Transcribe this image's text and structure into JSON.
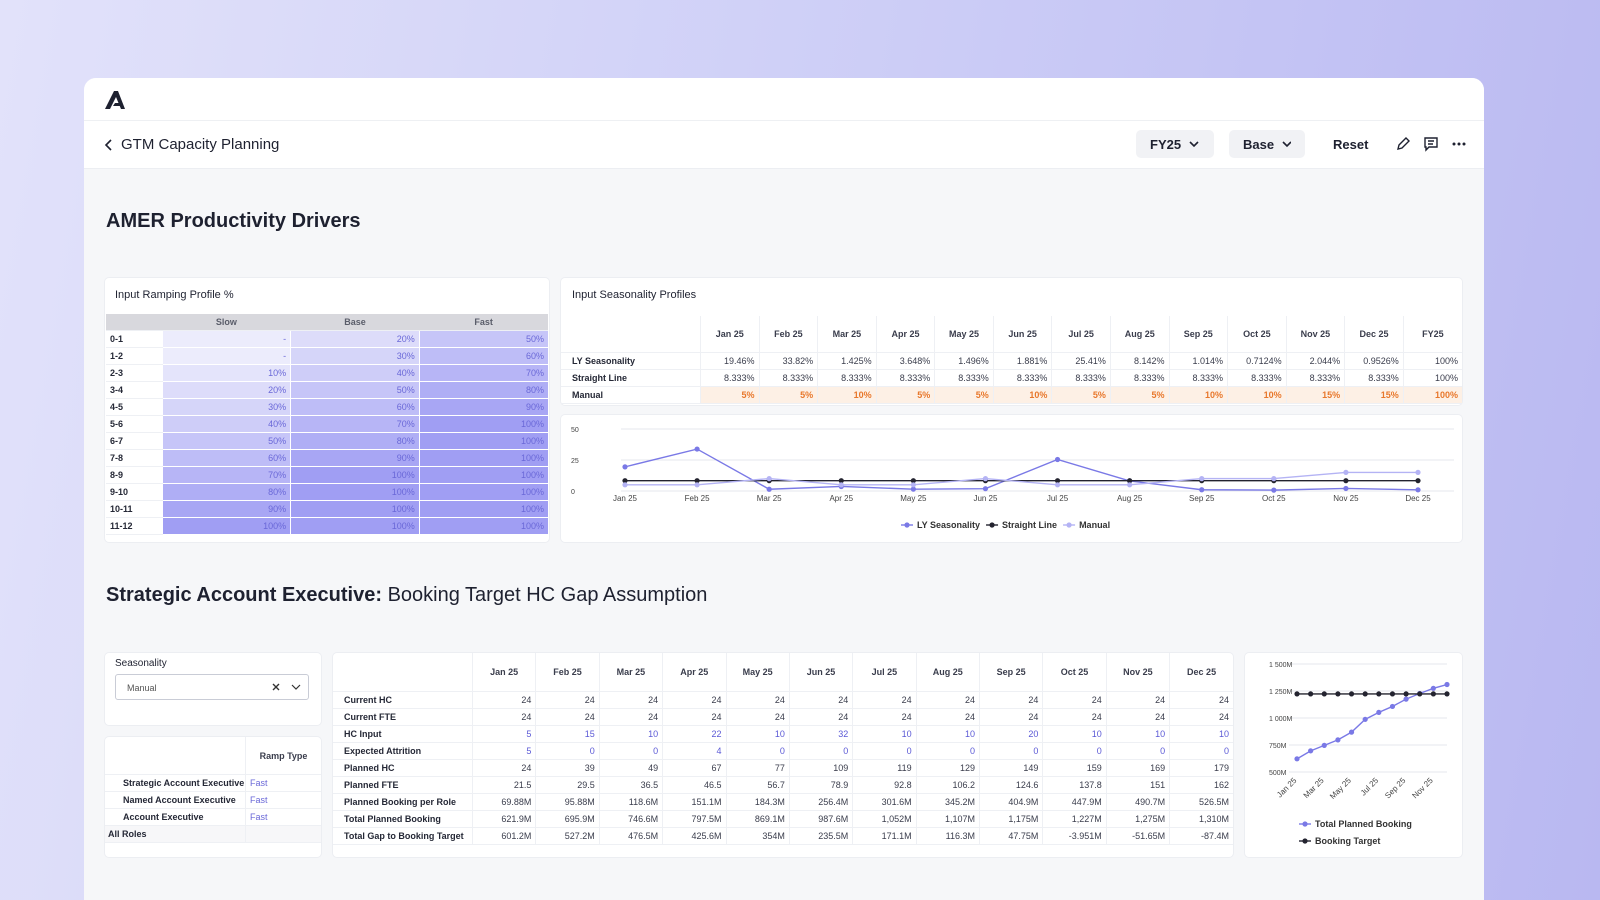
{
  "header": {
    "title": "GTM Capacity Planning",
    "year": "FY25",
    "scenario": "Base",
    "reset": "Reset"
  },
  "section1": {
    "title": "AMER Productivity Drivers"
  },
  "ramping_table": {
    "title": "Input Ramping Profile %",
    "columns": [
      "Slow",
      "Base",
      "Fast"
    ],
    "rows": [
      {
        "label": "0-1",
        "values": [
          "-",
          "20%",
          "50%"
        ]
      },
      {
        "label": "1-2",
        "values": [
          "-",
          "30%",
          "60%"
        ]
      },
      {
        "label": "2-3",
        "values": [
          "10%",
          "40%",
          "70%"
        ]
      },
      {
        "label": "3-4",
        "values": [
          "20%",
          "50%",
          "80%"
        ]
      },
      {
        "label": "4-5",
        "values": [
          "30%",
          "60%",
          "90%"
        ]
      },
      {
        "label": "5-6",
        "values": [
          "40%",
          "70%",
          "100%"
        ]
      },
      {
        "label": "6-7",
        "values": [
          "50%",
          "80%",
          "100%"
        ]
      },
      {
        "label": "7-8",
        "values": [
          "60%",
          "90%",
          "100%"
        ]
      },
      {
        "label": "8-9",
        "values": [
          "70%",
          "100%",
          "100%"
        ]
      },
      {
        "label": "9-10",
        "values": [
          "80%",
          "100%",
          "100%"
        ]
      },
      {
        "label": "10-11",
        "values": [
          "90%",
          "100%",
          "100%"
        ]
      },
      {
        "label": "11-12",
        "values": [
          "100%",
          "100%",
          "100%"
        ]
      }
    ]
  },
  "seasonality_table": {
    "title": "Input Seasonality Profiles",
    "columns": [
      "Jan 25",
      "Feb 25",
      "Mar 25",
      "Apr 25",
      "May 25",
      "Jun 25",
      "Jul 25",
      "Aug 25",
      "Sep 25",
      "Oct 25",
      "Nov 25",
      "Dec 25",
      "FY25"
    ],
    "rows": [
      {
        "label": "LY Seasonality",
        "values": [
          "19.46%",
          "33.82%",
          "1.425%",
          "3.648%",
          "1.496%",
          "1.881%",
          "25.41%",
          "8.142%",
          "1.014%",
          "0.7124%",
          "2.044%",
          "0.9526%",
          "100%"
        ]
      },
      {
        "label": "Straight Line",
        "values": [
          "8.333%",
          "8.333%",
          "8.333%",
          "8.333%",
          "8.333%",
          "8.333%",
          "8.333%",
          "8.333%",
          "8.333%",
          "8.333%",
          "8.333%",
          "8.333%",
          "100%"
        ]
      },
      {
        "label": "Manual",
        "values": [
          "5%",
          "5%",
          "10%",
          "5%",
          "5%",
          "10%",
          "5%",
          "5%",
          "10%",
          "10%",
          "15%",
          "15%",
          "100%"
        ]
      }
    ]
  },
  "chart_data": [
    {
      "type": "line",
      "categories": [
        "Jan 25",
        "Feb 25",
        "Mar 25",
        "Apr 25",
        "May 25",
        "Jun 25",
        "Jul 25",
        "Aug 25",
        "Sep 25",
        "Oct 25",
        "Nov 25",
        "Dec 25"
      ],
      "series": [
        {
          "name": "LY Seasonality",
          "color": "#7a79e6",
          "values": [
            19.46,
            33.82,
            1.425,
            3.648,
            1.496,
            1.881,
            25.41,
            8.142,
            1.014,
            0.7124,
            2.044,
            0.9526
          ]
        },
        {
          "name": "Straight Line",
          "color": "#23232f",
          "values": [
            8.333,
            8.333,
            8.333,
            8.333,
            8.333,
            8.333,
            8.333,
            8.333,
            8.333,
            8.333,
            8.333,
            8.333
          ]
        },
        {
          "name": "Manual",
          "color": "#b4b3f4",
          "values": [
            5,
            5,
            10,
            5,
            5,
            10,
            5,
            5,
            10,
            10,
            15,
            15
          ]
        }
      ],
      "ylim": [
        0,
        50
      ],
      "yticks": [
        0,
        25,
        50
      ],
      "grid": true,
      "legend": "bottom",
      "rotate_labels": false
    },
    {
      "type": "line",
      "categories": [
        "Jan 25",
        null,
        "Mar 25",
        null,
        "May 25",
        null,
        "Jul 25",
        null,
        "Sep 25",
        null,
        "Nov 25",
        null
      ],
      "series": [
        {
          "name": "Total Planned Booking",
          "color": "#7a79e6",
          "values": [
            621.9,
            695.9,
            746.6,
            797.5,
            869.1,
            987.6,
            1052,
            1107,
            1175,
            1227,
            1275,
            1310
          ]
        },
        {
          "name": "Booking Target",
          "color": "#23232f",
          "values": [
            1223.1,
            1223.1,
            1223.1,
            1223.1,
            1223.1,
            1223.1,
            1223.1,
            1223.1,
            1223.1,
            1223.1,
            1223.1,
            1223.1
          ]
        }
      ],
      "ylim": [
        500,
        1500
      ],
      "yticks": [
        {
          "value": 500,
          "label": "500M"
        },
        {
          "value": 750,
          "label": "750M"
        },
        {
          "value": 1000,
          "label": "1 000M"
        },
        {
          "value": 1250,
          "label": "1 250M"
        },
        {
          "value": 1500,
          "label": "1 500M"
        }
      ],
      "grid": true,
      "legend": "bottom-left",
      "rotate_labels": true
    }
  ],
  "section2": {
    "title_strong": "Strategic Account Executive:",
    "title_rest": "Booking Target HC Gap Assumption"
  },
  "filter": {
    "label": "Seasonality",
    "value": "Manual"
  },
  "role_table": {
    "column": "Ramp Type",
    "rows": [
      {
        "label": "Strategic Account Executive",
        "value": "Fast"
      },
      {
        "label": "Named Account Executive",
        "value": "Fast"
      },
      {
        "label": "Account Executive",
        "value": "Fast"
      }
    ],
    "total": "All Roles"
  },
  "hc_table": {
    "columns": [
      "Jan 25",
      "Feb 25",
      "Mar 25",
      "Apr 25",
      "May 25",
      "Jun 25",
      "Jul 25",
      "Aug 25",
      "Sep 25",
      "Oct 25",
      "Nov 25",
      "Dec 25"
    ],
    "rows": [
      {
        "label": "Current HC",
        "values": [
          "24",
          "24",
          "24",
          "24",
          "24",
          "24",
          "24",
          "24",
          "24",
          "24",
          "24",
          "24"
        ]
      },
      {
        "label": "Current FTE",
        "values": [
          "24",
          "24",
          "24",
          "24",
          "24",
          "24",
          "24",
          "24",
          "24",
          "24",
          "24",
          "24"
        ]
      },
      {
        "label": "HC Input",
        "values": [
          "5",
          "15",
          "10",
          "22",
          "10",
          "32",
          "10",
          "10",
          "20",
          "10",
          "10",
          "10"
        ]
      },
      {
        "label": "Expected Attrition",
        "values": [
          "5",
          "0",
          "0",
          "4",
          "0",
          "0",
          "0",
          "0",
          "0",
          "0",
          "0",
          "0"
        ]
      },
      {
        "label": "Planned HC",
        "values": [
          "24",
          "39",
          "49",
          "67",
          "77",
          "109",
          "119",
          "129",
          "149",
          "159",
          "169",
          "179"
        ]
      },
      {
        "label": "Planned FTE",
        "values": [
          "21.5",
          "29.5",
          "36.5",
          "46.5",
          "56.7",
          "78.9",
          "92.8",
          "106.2",
          "124.6",
          "137.8",
          "151",
          "162"
        ]
      },
      {
        "label": "Planned Booking per Role",
        "values": [
          "69.88M",
          "95.88M",
          "118.6M",
          "151.1M",
          "184.3M",
          "256.4M",
          "301.6M",
          "345.2M",
          "404.9M",
          "447.9M",
          "490.7M",
          "526.5M"
        ]
      },
      {
        "label": "Total Planned Booking",
        "values": [
          "621.9M",
          "695.9M",
          "746.6M",
          "797.5M",
          "869.1M",
          "987.6M",
          "1,052M",
          "1,107M",
          "1,175M",
          "1,227M",
          "1,275M",
          "1,310M"
        ]
      },
      {
        "label": "Total Gap to Booking Target",
        "values": [
          "601.2M",
          "527.2M",
          "476.5M",
          "425.6M",
          "354M",
          "235.5M",
          "171.1M",
          "116.3M",
          "47.75M",
          "-3.951M",
          "-51.65M",
          "-87.4M"
        ]
      }
    ]
  }
}
